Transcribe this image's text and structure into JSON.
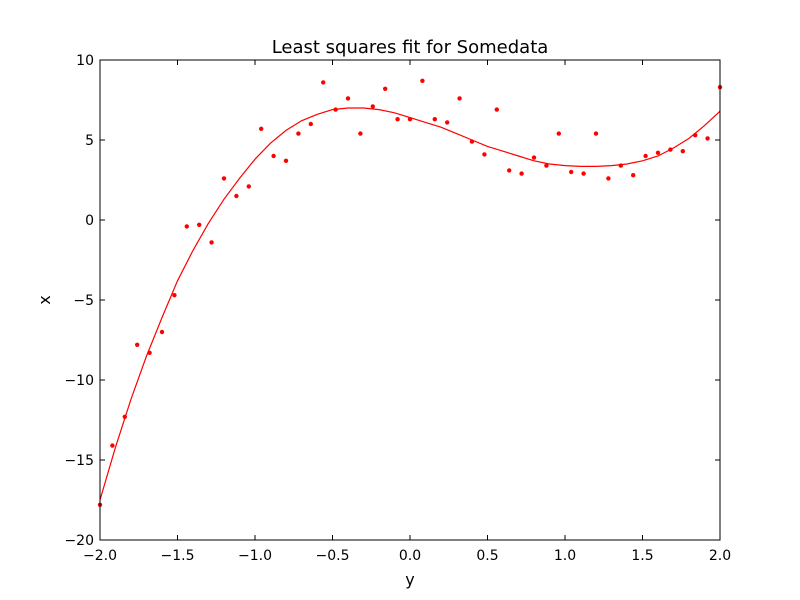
{
  "chart_data": {
    "type": "scatter",
    "title": "Least squares fit for Somedata",
    "xlabel": "y",
    "ylabel": "x",
    "xlim": [
      -2.0,
      2.0
    ],
    "ylim": [
      -20,
      10
    ],
    "x_ticks": [
      -2.0,
      -1.5,
      -1.0,
      -0.5,
      0.0,
      0.5,
      1.0,
      1.5,
      2.0
    ],
    "x_tick_labels": [
      "−2.0",
      "−1.5",
      "−1.0",
      "−0.5",
      "0.0",
      "0.5",
      "1.0",
      "1.5",
      "2.0"
    ],
    "y_ticks": [
      10,
      5,
      0,
      -5,
      -10,
      -15,
      -20
    ],
    "y_tick_labels": [
      "10",
      "5",
      "0",
      "−5",
      "−10",
      "−15",
      "−20"
    ],
    "grid": false,
    "colors": {
      "series": "#ff0000",
      "axes": "#000000",
      "background": "#ffffff"
    },
    "series": [
      {
        "kind": "points",
        "x": [
          -2.0,
          -1.92,
          -1.84,
          -1.76,
          -1.68,
          -1.6,
          -1.52,
          -1.44,
          -1.36,
          -1.28,
          -1.2,
          -1.12,
          -1.04,
          -0.96,
          -0.88,
          -0.8,
          -0.72,
          -0.64,
          -0.56,
          -0.48,
          -0.4,
          -0.32,
          -0.24,
          -0.16,
          -0.08,
          0.0,
          0.08,
          0.16,
          0.24,
          0.32,
          0.4,
          0.48,
          0.56,
          0.64,
          0.72,
          0.8,
          0.88,
          0.96,
          1.04,
          1.12,
          1.2,
          1.28,
          1.36,
          1.44,
          1.52,
          1.6,
          1.68,
          1.76,
          1.84,
          1.92,
          2.0
        ],
        "y": [
          -17.8,
          -14.1,
          -12.3,
          -7.8,
          -8.3,
          -7.0,
          -4.7,
          -0.4,
          -0.3,
          -1.4,
          2.6,
          1.5,
          2.1,
          5.7,
          4.0,
          3.7,
          5.4,
          6.0,
          8.6,
          6.9,
          7.6,
          5.4,
          7.1,
          8.2,
          6.3,
          6.3,
          8.7,
          6.3,
          6.1,
          7.6,
          4.9,
          4.1,
          6.9,
          3.1,
          2.9,
          3.9,
          3.4,
          5.4,
          3.0,
          2.9,
          5.4,
          2.6,
          3.4,
          2.8,
          4.0,
          4.2,
          4.4,
          4.3,
          5.3,
          5.1,
          8.3
        ]
      },
      {
        "kind": "fit-curve",
        "x": [
          -2.0,
          -1.9,
          -1.8,
          -1.7,
          -1.6,
          -1.5,
          -1.4,
          -1.3,
          -1.2,
          -1.1,
          -1.0,
          -0.9,
          -0.8,
          -0.7,
          -0.6,
          -0.5,
          -0.4,
          -0.3,
          -0.2,
          -0.1,
          0.0,
          0.1,
          0.2,
          0.3,
          0.4,
          0.5,
          0.6,
          0.7,
          0.8,
          0.9,
          1.0,
          1.1,
          1.2,
          1.3,
          1.4,
          1.5,
          1.6,
          1.7,
          1.8,
          1.9,
          2.0
        ],
        "y": [
          -17.5,
          -14.2,
          -11.2,
          -8.5,
          -6.1,
          -3.8,
          -1.9,
          -0.2,
          1.3,
          2.6,
          3.8,
          4.8,
          5.6,
          6.2,
          6.6,
          6.9,
          7.0,
          7.0,
          6.9,
          6.7,
          6.4,
          6.1,
          5.8,
          5.4,
          5.0,
          4.6,
          4.3,
          4.0,
          3.7,
          3.5,
          3.4,
          3.35,
          3.35,
          3.4,
          3.5,
          3.7,
          4.0,
          4.5,
          5.1,
          5.9,
          6.8
        ]
      }
    ]
  }
}
